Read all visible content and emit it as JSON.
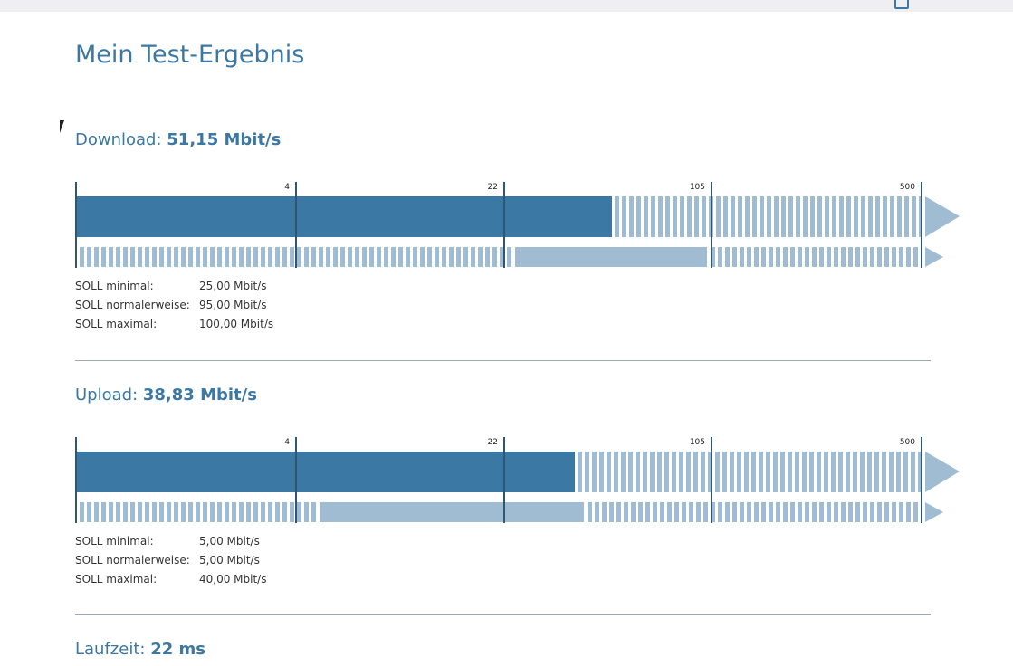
{
  "title": "Mein Test-Ergebnis",
  "colors": {
    "accent": "#3b78a3",
    "light": "#a0bcd2",
    "tick": "#2f5672"
  },
  "scale_ticks": [
    "4",
    "22",
    "105",
    "500"
  ],
  "download": {
    "label": "Download:",
    "value": "51,15 Mbit/s",
    "measured_mbit": 51.15,
    "soll": [
      {
        "k": "SOLL minimal:",
        "v": "25,00 Mbit/s"
      },
      {
        "k": "SOLL normalerweise:",
        "v": "95,00 Mbit/s"
      },
      {
        "k": "SOLL maximal:",
        "v": "100,00 Mbit/s"
      }
    ]
  },
  "upload": {
    "label": "Upload:",
    "value": "38,83 Mbit/s",
    "measured_mbit": 38.83,
    "soll": [
      {
        "k": "SOLL minimal:",
        "v": "5,00 Mbit/s"
      },
      {
        "k": "SOLL normalerweise:",
        "v": "5,00 Mbit/s"
      },
      {
        "k": "SOLL maximal:",
        "v": "40,00 Mbit/s"
      }
    ]
  },
  "laufzeit": {
    "label": "Laufzeit:",
    "value": "22 ms"
  }
}
